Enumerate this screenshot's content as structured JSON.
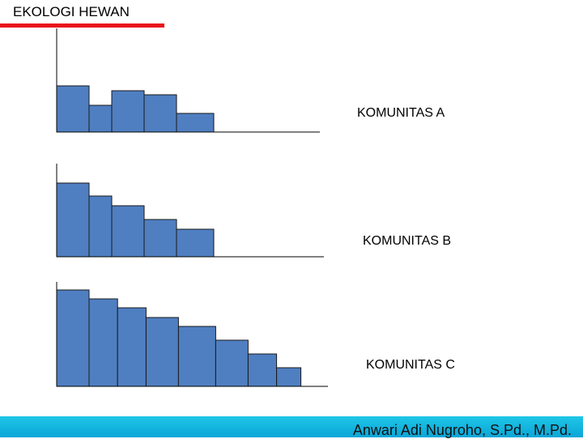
{
  "slide": {
    "title": "EKOLOGI HEWAN",
    "author": "Anwari Adi Nugroho, S.Pd., M.Pd.",
    "accent_color": "#e8141c",
    "footer_color": "#0aa6d8"
  },
  "chart_data": [
    {
      "type": "bar",
      "title": "KOMUNITAS A",
      "values": [
        57,
        33,
        51,
        46,
        23
      ],
      "widths": [
        1.0,
        0.7,
        1.0,
        1.0,
        1.15
      ],
      "ylim": [
        0,
        130
      ],
      "bar_color": "#4f7fc1"
    },
    {
      "type": "bar",
      "title": "KOMUNITAS B",
      "values": [
        91,
        75,
        63,
        46,
        34
      ],
      "widths": [
        1.0,
        0.7,
        1.0,
        1.0,
        1.15
      ],
      "ylim": [
        0,
        115
      ],
      "bar_color": "#4f7fc1"
    },
    {
      "type": "bar",
      "title": "KOMUNITAS C",
      "values": [
        119,
        108,
        97,
        85,
        74,
        57,
        40,
        23
      ],
      "widths": [
        1.0,
        0.88,
        0.88,
        1.0,
        1.15,
        1.0,
        0.88,
        0.75
      ],
      "ylim": [
        0,
        130
      ],
      "bar_color": "#4f7fc1"
    }
  ]
}
